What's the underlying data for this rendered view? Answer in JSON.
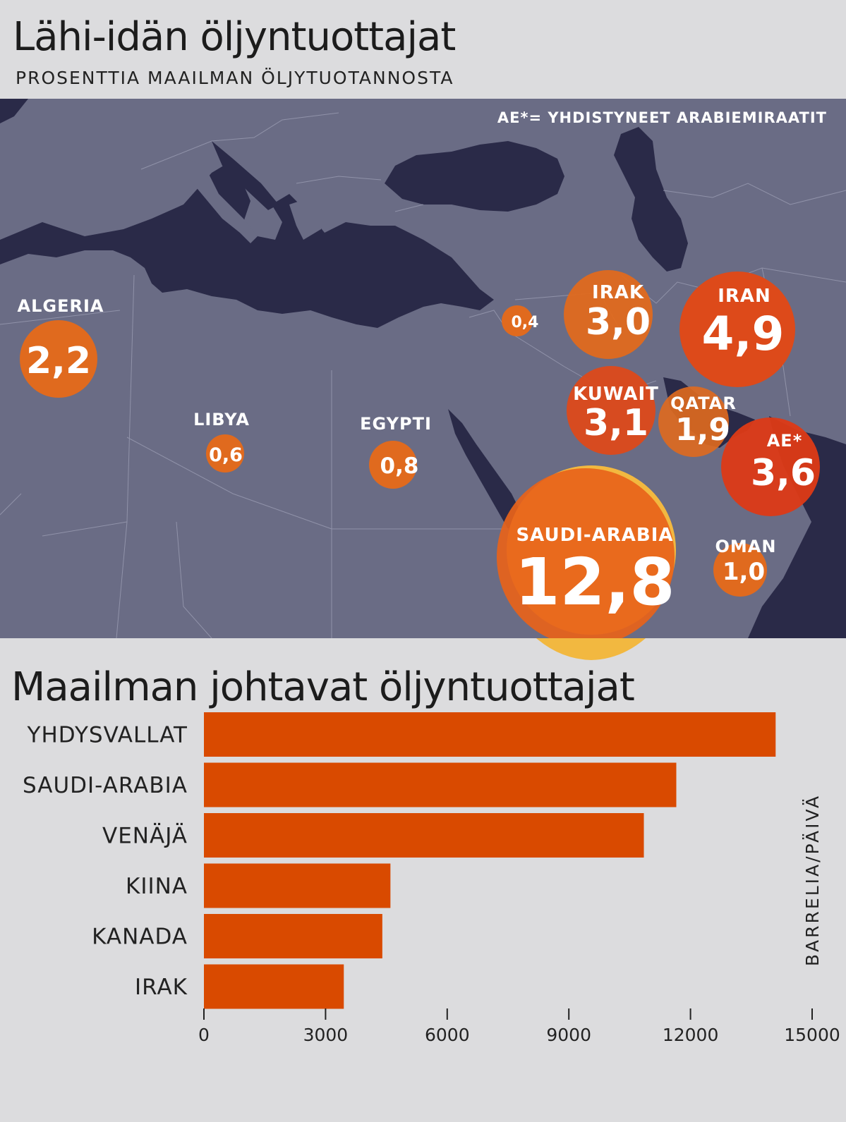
{
  "title": "Lähi-idän öljyntuottajat",
  "subtitle": "PROSENTTIA MAAILMAN ÖLJYTUOTANNOSTA",
  "map": {
    "legend_note": "AE*= YHDISTYNEET ARABIEMIRAATIT",
    "colors": {
      "land": "#6a6c85",
      "sea": "#2a2a48",
      "bubble": "#e06a1e",
      "bubble_large": "#e8631a",
      "bubble_shadow": "#f2b840"
    },
    "producers": [
      {
        "name": "ALGERIA",
        "value": "2,2"
      },
      {
        "name": "LIBYA",
        "value": "0,6"
      },
      {
        "name": "EGYPTI",
        "value": "0,8"
      },
      {
        "name": "",
        "value": "0,4"
      },
      {
        "name": "IRAK",
        "value": "3,0"
      },
      {
        "name": "IRAN",
        "value": "4,9"
      },
      {
        "name": "KUWAIT",
        "value": "3,1"
      },
      {
        "name": "QATAR",
        "value": "1,9"
      },
      {
        "name": "AE*",
        "value": "3,6"
      },
      {
        "name": "SAUDI-ARABIA",
        "value": "12,8"
      },
      {
        "name": "OMAN",
        "value": "1,0"
      }
    ]
  },
  "bar_title": "Maailman johtavat öljyntuottajat",
  "chart_data": {
    "type": "bar",
    "orientation": "horizontal",
    "title": "Maailman johtavat öljyntuottajat",
    "categories": [
      "YHDYSVALLAT",
      "SAUDI-ARABIA",
      "VENÄJÄ",
      "KIINA",
      "KANADA",
      "IRAK"
    ],
    "values": [
      14100,
      11650,
      10850,
      4600,
      4400,
      3450
    ],
    "xlim": [
      0,
      15000
    ],
    "xticks": [
      "0",
      "3000",
      "6000",
      "9000",
      "12000",
      "15000"
    ],
    "unit_label": "BARRELIA/PÄIVÄ",
    "bar_color": "#d94a00",
    "grid": false
  }
}
